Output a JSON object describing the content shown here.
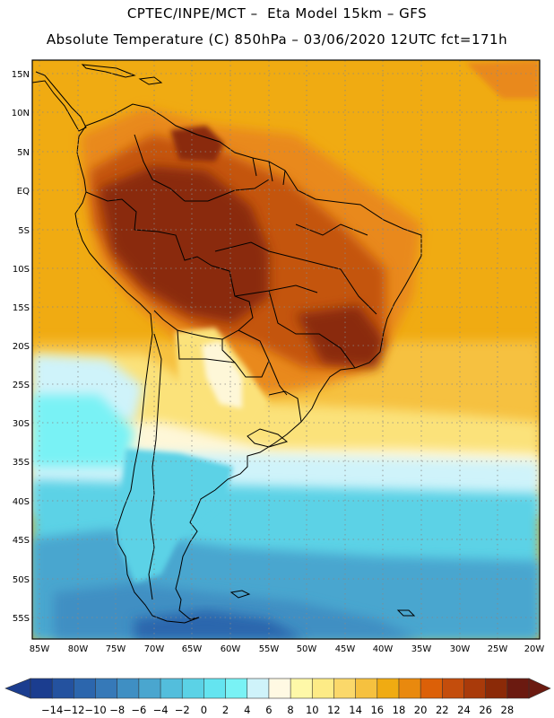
{
  "title_line1": "CPTEC/INPE/MCT –  Eta Model 15km – GFS",
  "title_line2": "Absolute Temperature (C) 850hPa – 03/06/2020 12UTC fct=171h",
  "lat_labels": [
    "15N",
    "10N",
    "5N",
    "EQ",
    "5S",
    "10S",
    "15S",
    "20S",
    "25S",
    "30S",
    "35S",
    "40S",
    "45S",
    "50S",
    "55S"
  ],
  "lon_labels": [
    "85W",
    "80W",
    "75W",
    "70W",
    "65W",
    "60W",
    "55W",
    "50W",
    "45W",
    "40W",
    "35W",
    "30W",
    "25W",
    "20W"
  ],
  "colorbar": {
    "labels": [
      "-14",
      "-12",
      "-10",
      "-8",
      "-6",
      "-4",
      "-2",
      "0",
      "2",
      "4",
      "6",
      "8",
      "10",
      "12",
      "14",
      "16",
      "18",
      "20",
      "22",
      "24",
      "26",
      "28"
    ],
    "colors": [
      "#1b3d8f",
      "#24529f",
      "#2c66ad",
      "#3679b8",
      "#3f8fc3",
      "#4aa6cf",
      "#53bedc",
      "#5bd2e6",
      "#64e4f0",
      "#79f2f5",
      "#cff3fa",
      "#fff9e3",
      "#fef8a8",
      "#fdeb86",
      "#fbd86a",
      "#f6c13f",
      "#f0ab12",
      "#e9890e",
      "#dc6008",
      "#c44d0c",
      "#a93a0a",
      "#8b2a08",
      "#6b1a10"
    ],
    "units": "C"
  },
  "colors": {
    "very_hot": "#8a2a0c",
    "hot": "#c45510",
    "warm": "#e9891c",
    "mild_warm": "#f0ab12",
    "mild": "#f6c13f",
    "cool_yellow": "#fbe27a",
    "pale": "#fef7d8",
    "cool": "#cff3fa",
    "cold": "#5bd2e6",
    "very_cold": "#3f8fc3",
    "deep_cold": "#2c66ad",
    "coast": "#000000"
  }
}
